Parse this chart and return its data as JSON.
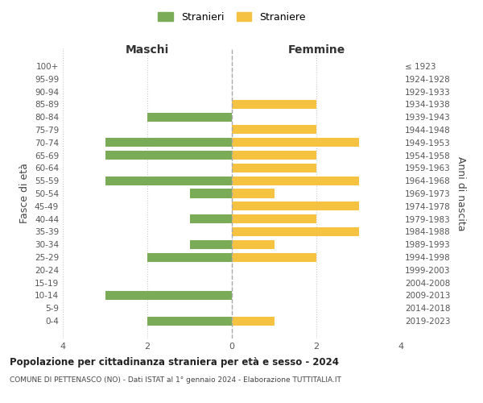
{
  "age_groups": [
    "100+",
    "95-99",
    "90-94",
    "85-89",
    "80-84",
    "75-79",
    "70-74",
    "65-69",
    "60-64",
    "55-59",
    "50-54",
    "45-49",
    "40-44",
    "35-39",
    "30-34",
    "25-29",
    "20-24",
    "15-19",
    "10-14",
    "5-9",
    "0-4"
  ],
  "birth_years": [
    "≤ 1923",
    "1924-1928",
    "1929-1933",
    "1934-1938",
    "1939-1943",
    "1944-1948",
    "1949-1953",
    "1954-1958",
    "1959-1963",
    "1964-1968",
    "1969-1973",
    "1974-1978",
    "1979-1983",
    "1984-1988",
    "1989-1993",
    "1994-1998",
    "1999-2003",
    "2004-2008",
    "2009-2013",
    "2014-2018",
    "2019-2023"
  ],
  "maschi": [
    0,
    0,
    0,
    0,
    2,
    0,
    3,
    3,
    0,
    3,
    1,
    0,
    1,
    0,
    1,
    2,
    0,
    0,
    3,
    0,
    2
  ],
  "femmine": [
    0,
    0,
    0,
    2,
    0,
    2,
    3,
    2,
    2,
    3,
    1,
    3,
    2,
    3,
    1,
    2,
    0,
    0,
    0,
    0,
    1
  ],
  "color_maschi": "#7aab57",
  "color_femmine": "#f5c242",
  "title": "Popolazione per cittadinanza straniera per età e sesso - 2024",
  "subtitle": "COMUNE DI PETTENASCO (NO) - Dati ISTAT al 1° gennaio 2024 - Elaborazione TUTTITALIA.IT",
  "xlabel_left": "Maschi",
  "xlabel_right": "Femmine",
  "ylabel_left": "Fasce di età",
  "ylabel_right": "Anni di nascita",
  "legend_maschi": "Stranieri",
  "legend_femmine": "Straniere",
  "xlim": 4,
  "background_color": "#ffffff"
}
